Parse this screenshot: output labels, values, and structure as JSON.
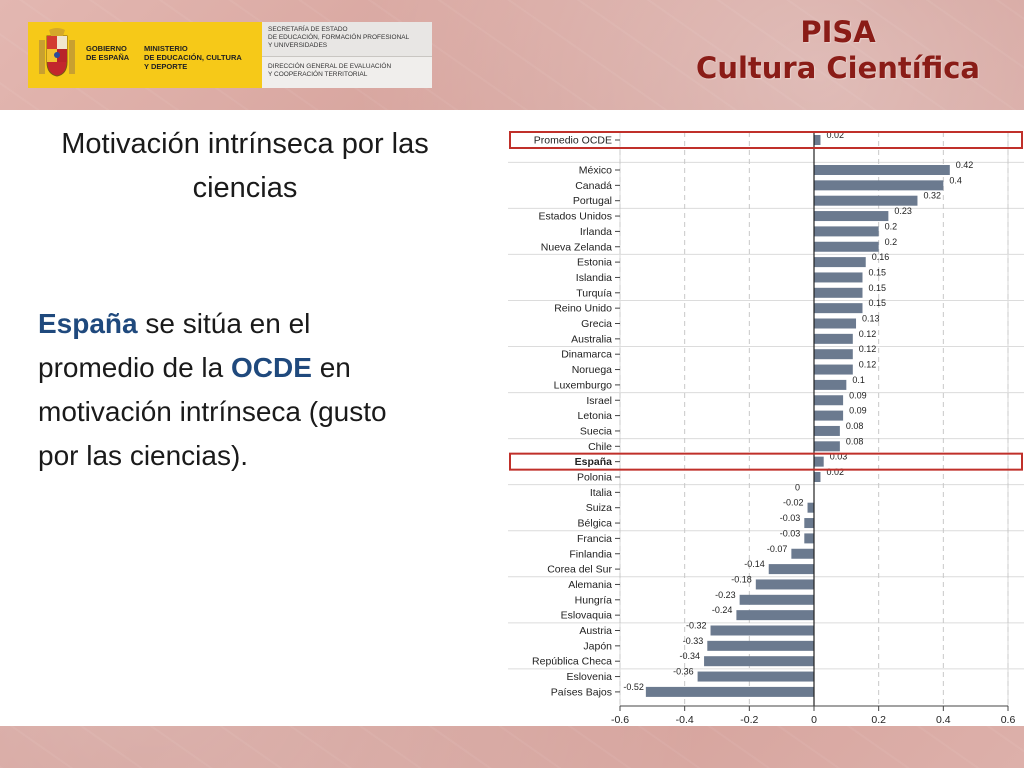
{
  "header": {
    "logo": {
      "gobierno_lines": [
        "GOBIERNO",
        "DE ESPAÑA"
      ],
      "ministerio_lines": [
        "MINISTERIO",
        "DE EDUCACIÓN, CULTURA",
        "Y DEPORTE"
      ],
      "secretaria_lines": [
        "SECRETARÍA DE ESTADO",
        "DE EDUCACIÓN, FORMACIÓN PROFESIONAL",
        "Y UNIVERSIDADES"
      ],
      "direccion_lines": [
        "DIRECCIÓN GENERAL DE EVALUACIÓN",
        "Y COOPERACIÓN TERRITORIAL"
      ]
    },
    "title_line1": "PISA",
    "title_line2": "Cultura Científica"
  },
  "slide": {
    "heading": "Motivación intrínseca por las ciencias",
    "body": {
      "espana": "España",
      "part1": " se sitúa en el promedio de la ",
      "ocde": "OCDE",
      "part2": " en motivación intrínseca (gusto por las ciencias)."
    }
  },
  "colors": {
    "bar": "#6b7a8f",
    "highlight_box": "#c0302a",
    "title_red": "#8a1c17",
    "emphasis_blue": "#1f497d",
    "logo_yellow": "#f6c918"
  },
  "chart_data": {
    "type": "bar",
    "orientation": "horizontal",
    "categories": [
      "Promedio OCDE",
      "México",
      "Canadá",
      "Portugal",
      "Estados Unidos",
      "Irlanda",
      "Nueva Zelanda",
      "Estonia",
      "Islandia",
      "Turquía",
      "Reino Unido",
      "Grecia",
      "Australia",
      "Dinamarca",
      "Noruega",
      "Luxemburgo",
      "Israel",
      "Letonia",
      "Suecia",
      "Chile",
      "España",
      "Polonia",
      "Italia",
      "Suiza",
      "Bélgica",
      "Francia",
      "Finlandia",
      "Corea del Sur",
      "Alemania",
      "Hungría",
      "Eslovaquia",
      "Austria",
      "Japón",
      "República Checa",
      "Eslovenia",
      "Países Bajos"
    ],
    "values": [
      0.02,
      0.42,
      0.4,
      0.32,
      0.23,
      0.2,
      0.2,
      0.16,
      0.15,
      0.15,
      0.15,
      0.13,
      0.12,
      0.12,
      0.12,
      0.1,
      0.09,
      0.09,
      0.08,
      0.08,
      0.03,
      0.02,
      0,
      -0.02,
      -0.03,
      -0.03,
      -0.07,
      -0.14,
      -0.18,
      -0.23,
      -0.24,
      -0.32,
      -0.33,
      -0.34,
      -0.36,
      -0.52
    ],
    "value_labels": [
      "0.02",
      "0.42",
      "0.4",
      "0.32",
      "0.23",
      "0.2",
      "0.2",
      "0.16",
      "0.15",
      "0.15",
      "0.15",
      "0.13",
      "0.12",
      "0.12",
      "0.12",
      "0.1",
      "0.09",
      "0.09",
      "0.08",
      "0.08",
      "0.03",
      "0.02",
      "0",
      "-0.02",
      "-0.03",
      "-0.03",
      "-0.07",
      "-0.14",
      "-0.18",
      "-0.23",
      "-0.24",
      "-0.32",
      "-0.33",
      "-0.34",
      "-0.36",
      "-0.52"
    ],
    "highlighted": [
      "Promedio OCDE",
      "España"
    ],
    "bold_categories": [
      "España"
    ],
    "xlim": [
      -0.6,
      0.6
    ],
    "xticks": [
      -0.6,
      -0.4,
      -0.2,
      0,
      0.2,
      0.4,
      0.6
    ],
    "xtick_labels": [
      "-0.6",
      "-0.4",
      "-0.2",
      "0",
      "0.2",
      "0.4",
      "0.6"
    ],
    "grid": "vertical dashed"
  }
}
